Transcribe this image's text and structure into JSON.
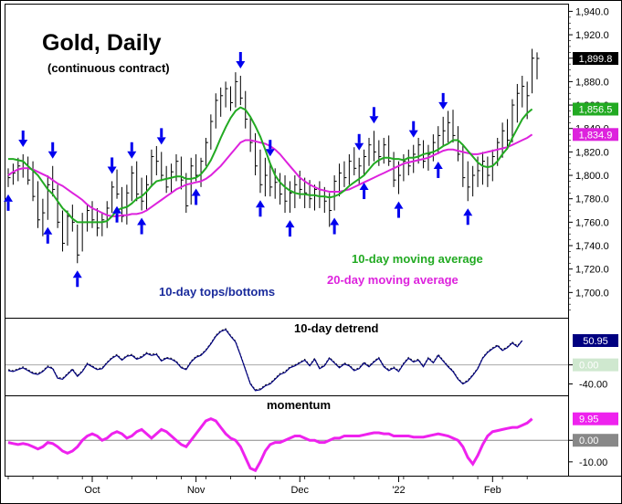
{
  "chart_data": [
    {
      "type": "line",
      "panel": "price",
      "title": "Gold, Daily",
      "subtitle": "(continuous contract)",
      "ylim": [
        1680,
        1945
      ],
      "y_ticks": [
        "1,940.0",
        "1,920.0",
        "1,900.0",
        "1,880.0",
        "1,860.0",
        "1,840.0",
        "1,820.0",
        "1,800.0",
        "1,780.0",
        "1,760.0",
        "1,740.0",
        "1,720.0",
        "1,700.0"
      ],
      "y_tick_values": [
        1940,
        1920,
        1900,
        1880,
        1860,
        1840,
        1820,
        1800,
        1780,
        1760,
        1740,
        1720,
        1700
      ],
      "x_labels": [
        "Oct",
        "Nov",
        "Dec",
        "'22",
        "Feb"
      ],
      "x_label_index": [
        17,
        38,
        59,
        79,
        98
      ],
      "last_values": {
        "price": "1,899.8",
        "ma10": "1,856.5",
        "ma20": "1,834.9"
      },
      "annotations": {
        "ma10": "10-day moving average",
        "ma20": "20-day moving average",
        "cycles": "10-day tops/bottoms"
      },
      "colors": {
        "ma10": "#22aa22",
        "ma20": "#dd22dd",
        "arrows": "#0000ee",
        "annotation_blue": "#1a2b9c",
        "bars": "#000000"
      },
      "bars": [
        {
          "h": 1806,
          "l": 1790,
          "c": 1798
        },
        {
          "h": 1810,
          "l": 1792,
          "c": 1802
        },
        {
          "h": 1815,
          "l": 1795,
          "c": 1808
        },
        {
          "h": 1818,
          "l": 1798,
          "c": 1806
        },
        {
          "h": 1816,
          "l": 1792,
          "c": 1796
        },
        {
          "h": 1812,
          "l": 1778,
          "c": 1782
        },
        {
          "h": 1795,
          "l": 1755,
          "c": 1762
        },
        {
          "h": 1780,
          "l": 1748,
          "c": 1768
        },
        {
          "h": 1800,
          "l": 1762,
          "c": 1792
        },
        {
          "h": 1808,
          "l": 1782,
          "c": 1788
        },
        {
          "h": 1792,
          "l": 1755,
          "c": 1760
        },
        {
          "h": 1770,
          "l": 1735,
          "c": 1742
        },
        {
          "h": 1770,
          "l": 1740,
          "c": 1765
        },
        {
          "h": 1775,
          "l": 1752,
          "c": 1760
        },
        {
          "h": 1758,
          "l": 1725,
          "c": 1732
        },
        {
          "h": 1768,
          "l": 1735,
          "c": 1760
        },
        {
          "h": 1775,
          "l": 1752,
          "c": 1770
        },
        {
          "h": 1778,
          "l": 1755,
          "c": 1762
        },
        {
          "h": 1772,
          "l": 1748,
          "c": 1755
        },
        {
          "h": 1768,
          "l": 1748,
          "c": 1762
        },
        {
          "h": 1778,
          "l": 1755,
          "c": 1772
        },
        {
          "h": 1795,
          "l": 1768,
          "c": 1790
        },
        {
          "h": 1805,
          "l": 1780,
          "c": 1784
        },
        {
          "h": 1790,
          "l": 1760,
          "c": 1765
        },
        {
          "h": 1792,
          "l": 1758,
          "c": 1785
        },
        {
          "h": 1808,
          "l": 1778,
          "c": 1802
        },
        {
          "h": 1812,
          "l": 1778,
          "c": 1784
        },
        {
          "h": 1798,
          "l": 1770,
          "c": 1778
        },
        {
          "h": 1800,
          "l": 1770,
          "c": 1792
        },
        {
          "h": 1822,
          "l": 1790,
          "c": 1816
        },
        {
          "h": 1825,
          "l": 1800,
          "c": 1812
        },
        {
          "h": 1820,
          "l": 1795,
          "c": 1800
        },
        {
          "h": 1808,
          "l": 1785,
          "c": 1790
        },
        {
          "h": 1810,
          "l": 1785,
          "c": 1803
        },
        {
          "h": 1818,
          "l": 1795,
          "c": 1812
        },
        {
          "h": 1816,
          "l": 1788,
          "c": 1796
        },
        {
          "h": 1802,
          "l": 1768,
          "c": 1774
        },
        {
          "h": 1815,
          "l": 1775,
          "c": 1808
        },
        {
          "h": 1818,
          "l": 1795,
          "c": 1800
        },
        {
          "h": 1815,
          "l": 1790,
          "c": 1812
        },
        {
          "h": 1832,
          "l": 1808,
          "c": 1828
        },
        {
          "h": 1852,
          "l": 1822,
          "c": 1846
        },
        {
          "h": 1870,
          "l": 1840,
          "c": 1864
        },
        {
          "h": 1875,
          "l": 1850,
          "c": 1868
        },
        {
          "h": 1880,
          "l": 1858,
          "c": 1874
        },
        {
          "h": 1876,
          "l": 1855,
          "c": 1862
        },
        {
          "h": 1888,
          "l": 1858,
          "c": 1880
        },
        {
          "h": 1885,
          "l": 1860,
          "c": 1866
        },
        {
          "h": 1872,
          "l": 1840,
          "c": 1848
        },
        {
          "h": 1850,
          "l": 1820,
          "c": 1828
        },
        {
          "h": 1836,
          "l": 1800,
          "c": 1808
        },
        {
          "h": 1822,
          "l": 1785,
          "c": 1792
        },
        {
          "h": 1815,
          "l": 1782,
          "c": 1800
        },
        {
          "h": 1810,
          "l": 1782,
          "c": 1790
        },
        {
          "h": 1806,
          "l": 1780,
          "c": 1794
        },
        {
          "h": 1802,
          "l": 1775,
          "c": 1784
        },
        {
          "h": 1800,
          "l": 1768,
          "c": 1778
        },
        {
          "h": 1795,
          "l": 1768,
          "c": 1785
        },
        {
          "h": 1800,
          "l": 1772,
          "c": 1792
        },
        {
          "h": 1804,
          "l": 1780,
          "c": 1788
        },
        {
          "h": 1798,
          "l": 1772,
          "c": 1785
        },
        {
          "h": 1796,
          "l": 1772,
          "c": 1780
        },
        {
          "h": 1792,
          "l": 1770,
          "c": 1788
        },
        {
          "h": 1795,
          "l": 1772,
          "c": 1782
        },
        {
          "h": 1790,
          "l": 1768,
          "c": 1778
        },
        {
          "h": 1785,
          "l": 1756,
          "c": 1770
        },
        {
          "h": 1800,
          "l": 1770,
          "c": 1795
        },
        {
          "h": 1810,
          "l": 1782,
          "c": 1802
        },
        {
          "h": 1812,
          "l": 1790,
          "c": 1798
        },
        {
          "h": 1818,
          "l": 1792,
          "c": 1812
        },
        {
          "h": 1824,
          "l": 1800,
          "c": 1806
        },
        {
          "h": 1815,
          "l": 1792,
          "c": 1808
        },
        {
          "h": 1822,
          "l": 1800,
          "c": 1816
        },
        {
          "h": 1832,
          "l": 1808,
          "c": 1826
        },
        {
          "h": 1838,
          "l": 1812,
          "c": 1820
        },
        {
          "h": 1830,
          "l": 1808,
          "c": 1816
        },
        {
          "h": 1832,
          "l": 1810,
          "c": 1826
        },
        {
          "h": 1834,
          "l": 1808,
          "c": 1812
        },
        {
          "h": 1820,
          "l": 1790,
          "c": 1796
        },
        {
          "h": 1812,
          "l": 1784,
          "c": 1800
        },
        {
          "h": 1818,
          "l": 1795,
          "c": 1812
        },
        {
          "h": 1822,
          "l": 1800,
          "c": 1808
        },
        {
          "h": 1826,
          "l": 1802,
          "c": 1818
        },
        {
          "h": 1832,
          "l": 1810,
          "c": 1826
        },
        {
          "h": 1830,
          "l": 1806,
          "c": 1812
        },
        {
          "h": 1826,
          "l": 1804,
          "c": 1818
        },
        {
          "h": 1835,
          "l": 1812,
          "c": 1828
        },
        {
          "h": 1842,
          "l": 1818,
          "c": 1834
        },
        {
          "h": 1850,
          "l": 1825,
          "c": 1838
        },
        {
          "h": 1855,
          "l": 1828,
          "c": 1845
        },
        {
          "h": 1856,
          "l": 1828,
          "c": 1834
        },
        {
          "h": 1842,
          "l": 1812,
          "c": 1818
        },
        {
          "h": 1826,
          "l": 1790,
          "c": 1798
        },
        {
          "h": 1812,
          "l": 1778,
          "c": 1790
        },
        {
          "h": 1808,
          "l": 1782,
          "c": 1800
        },
        {
          "h": 1816,
          "l": 1790,
          "c": 1804
        },
        {
          "h": 1820,
          "l": 1792,
          "c": 1812
        },
        {
          "h": 1816,
          "l": 1790,
          "c": 1800
        },
        {
          "h": 1822,
          "l": 1795,
          "c": 1816
        },
        {
          "h": 1832,
          "l": 1808,
          "c": 1828
        },
        {
          "h": 1845,
          "l": 1815,
          "c": 1838
        },
        {
          "h": 1848,
          "l": 1822,
          "c": 1830
        },
        {
          "h": 1865,
          "l": 1828,
          "c": 1860
        },
        {
          "h": 1878,
          "l": 1845,
          "c": 1870
        },
        {
          "h": 1885,
          "l": 1858,
          "c": 1876
        },
        {
          "h": 1880,
          "l": 1848,
          "c": 1868
        },
        {
          "h": 1908,
          "l": 1870,
          "c": 1900
        },
        {
          "h": 1905,
          "l": 1882,
          "c": 1899.8
        }
      ],
      "ma10": [
        1814,
        1814,
        1813,
        1812,
        1808,
        1804,
        1800,
        1794,
        1788,
        1784,
        1778,
        1772,
        1768,
        1763,
        1760,
        1760,
        1760,
        1760,
        1760,
        1760,
        1761,
        1765,
        1770,
        1772,
        1773,
        1776,
        1780,
        1782,
        1786,
        1791,
        1795,
        1796,
        1797,
        1798,
        1799,
        1799,
        1797,
        1797,
        1798,
        1801,
        1806,
        1813,
        1822,
        1832,
        1841,
        1849,
        1855,
        1858,
        1856,
        1850,
        1842,
        1833,
        1822,
        1810,
        1800,
        1794,
        1790,
        1787,
        1785,
        1784,
        1784,
        1783,
        1783,
        1782,
        1782,
        1781,
        1782,
        1784,
        1787,
        1791,
        1794,
        1797,
        1800,
        1805,
        1810,
        1813,
        1815,
        1815,
        1814,
        1814,
        1813,
        1815,
        1815,
        1816,
        1818,
        1819,
        1820,
        1822,
        1825,
        1827,
        1830,
        1830,
        1826,
        1821,
        1816,
        1811,
        1808,
        1807,
        1808,
        1812,
        1818,
        1823,
        1832,
        1840,
        1848,
        1853,
        1856.5
      ],
      "ma20": [
        1800,
        1803,
        1805,
        1806,
        1806,
        1805,
        1803,
        1801,
        1799,
        1796,
        1793,
        1791,
        1788,
        1785,
        1782,
        1779,
        1775,
        1772,
        1770,
        1768,
        1766,
        1765,
        1765,
        1766,
        1766,
        1767,
        1767,
        1768,
        1770,
        1773,
        1776,
        1779,
        1782,
        1785,
        1788,
        1790,
        1792,
        1793,
        1794,
        1795,
        1797,
        1800,
        1804,
        1808,
        1813,
        1818,
        1823,
        1828,
        1830,
        1830,
        1829,
        1828,
        1827,
        1825,
        1822,
        1818,
        1813,
        1808,
        1803,
        1798,
        1795,
        1792,
        1790,
        1788,
        1787,
        1786,
        1786,
        1786,
        1787,
        1788,
        1790,
        1792,
        1794,
        1796,
        1798,
        1800,
        1802,
        1804,
        1806,
        1808,
        1810,
        1811,
        1812,
        1813,
        1814,
        1815,
        1817,
        1819,
        1821,
        1822,
        1822,
        1821,
        1820,
        1819,
        1818,
        1818,
        1819,
        1820,
        1821,
        1822,
        1823,
        1824,
        1826,
        1828,
        1830,
        1832,
        1834.9
      ],
      "arrows_up": [
        0,
        8,
        14,
        22,
        27,
        38,
        51,
        57,
        66,
        72,
        79,
        87,
        93
      ],
      "arrows_down": [
        3,
        9,
        21,
        25,
        31,
        47,
        53,
        71,
        74,
        82,
        88
      ]
    },
    {
      "type": "line",
      "panel": "detrend",
      "title": "10-day detrend",
      "ylim": [
        -62,
        95
      ],
      "y_ticks": [
        "0.00",
        "-40.00"
      ],
      "y_tick_values": [
        0,
        -40
      ],
      "last_value": "50.95",
      "zero_label": "0.00",
      "colors": {
        "line": "#000080",
        "zero_line": "#aaaaaa"
      },
      "values": [
        -12,
        -14,
        -10,
        -6,
        -12,
        -18,
        -20,
        -14,
        -4,
        -8,
        -28,
        -30,
        -20,
        -10,
        -24,
        -14,
        2,
        -4,
        -10,
        -8,
        4,
        14,
        20,
        10,
        18,
        20,
        12,
        16,
        24,
        20,
        22,
        8,
        14,
        12,
        6,
        -6,
        -10,
        6,
        16,
        20,
        30,
        44,
        60,
        70,
        74,
        60,
        48,
        20,
        -10,
        -40,
        -54,
        -52,
        -44,
        -40,
        -30,
        -20,
        -16,
        -6,
        -2,
        4,
        10,
        -2,
        12,
        -8,
        -2,
        14,
        4,
        -6,
        2,
        -2,
        -12,
        -8,
        4,
        -4,
        6,
        14,
        -4,
        -12,
        -6,
        -14,
        2,
        14,
        6,
        10,
        -4,
        14,
        4,
        20,
        8,
        -4,
        -14,
        -30,
        -40,
        -34,
        -22,
        -8,
        14,
        26,
        34,
        40,
        30,
        36,
        46,
        38,
        50.95
      ],
      "dashed": [
        -10,
        -12,
        -8,
        -4,
        -10,
        -16,
        -18,
        -12,
        -2,
        -6,
        -26,
        -28,
        -18,
        -8,
        -22,
        -12,
        4,
        -2,
        -8,
        -6,
        6,
        16,
        22,
        12,
        20,
        22,
        14,
        18,
        26,
        22,
        24,
        10,
        16,
        14,
        8,
        -4,
        -8,
        8,
        18,
        22,
        32,
        46,
        62,
        72,
        76,
        62,
        50,
        22,
        -8,
        -38,
        -52,
        -50,
        -42,
        -38,
        -28,
        -18,
        -14,
        -4,
        0,
        6,
        12,
        0,
        14,
        -6,
        0,
        16,
        6,
        -4,
        4,
        0,
        -10,
        -6,
        6,
        -2,
        8,
        16,
        -2,
        -10,
        -4,
        -12,
        4,
        16,
        8,
        12,
        -2,
        16,
        6,
        22,
        10,
        -2,
        -12,
        -28,
        -38,
        -32,
        -20,
        -6,
        16,
        28,
        36,
        42,
        32,
        38,
        48,
        40,
        52
      ]
    },
    {
      "type": "line",
      "panel": "momentum",
      "title": "momentum",
      "ylim": [
        -16,
        20
      ],
      "y_ticks": [
        "0.00",
        "-10.00"
      ],
      "y_tick_values": [
        0,
        -10
      ],
      "last_value": "9.95",
      "zero_label": "0.00",
      "colors": {
        "line": "#ee22ee",
        "zero_line": "#888888"
      },
      "values": [
        -1,
        -1.5,
        -2,
        -1.5,
        -2,
        -3,
        -4,
        -3,
        -1,
        -1.5,
        -3,
        -5,
        -6,
        -5,
        -3,
        0,
        2,
        3,
        2,
        0,
        1,
        3,
        4,
        3,
        1,
        2,
        4,
        5,
        3,
        1,
        3,
        5,
        4,
        2,
        0,
        -2,
        -3,
        0,
        3,
        6,
        9,
        10,
        9,
        6,
        3,
        1,
        0,
        -3,
        -8,
        -13,
        -14,
        -10,
        -5,
        -2,
        -1,
        -1,
        0,
        1,
        2,
        2,
        1,
        0,
        0,
        -1,
        -1,
        0,
        1,
        1,
        2,
        2,
        2,
        2,
        2.5,
        3,
        3.5,
        3.5,
        3,
        3,
        2,
        2,
        2,
        2,
        1.5,
        1.5,
        1.5,
        2,
        2.5,
        3,
        2.5,
        2,
        1,
        0,
        -3,
        -8,
        -11,
        -7,
        -2,
        2,
        4,
        4.5,
        5,
        5.5,
        6,
        6,
        7,
        8,
        9.95
      ]
    }
  ]
}
